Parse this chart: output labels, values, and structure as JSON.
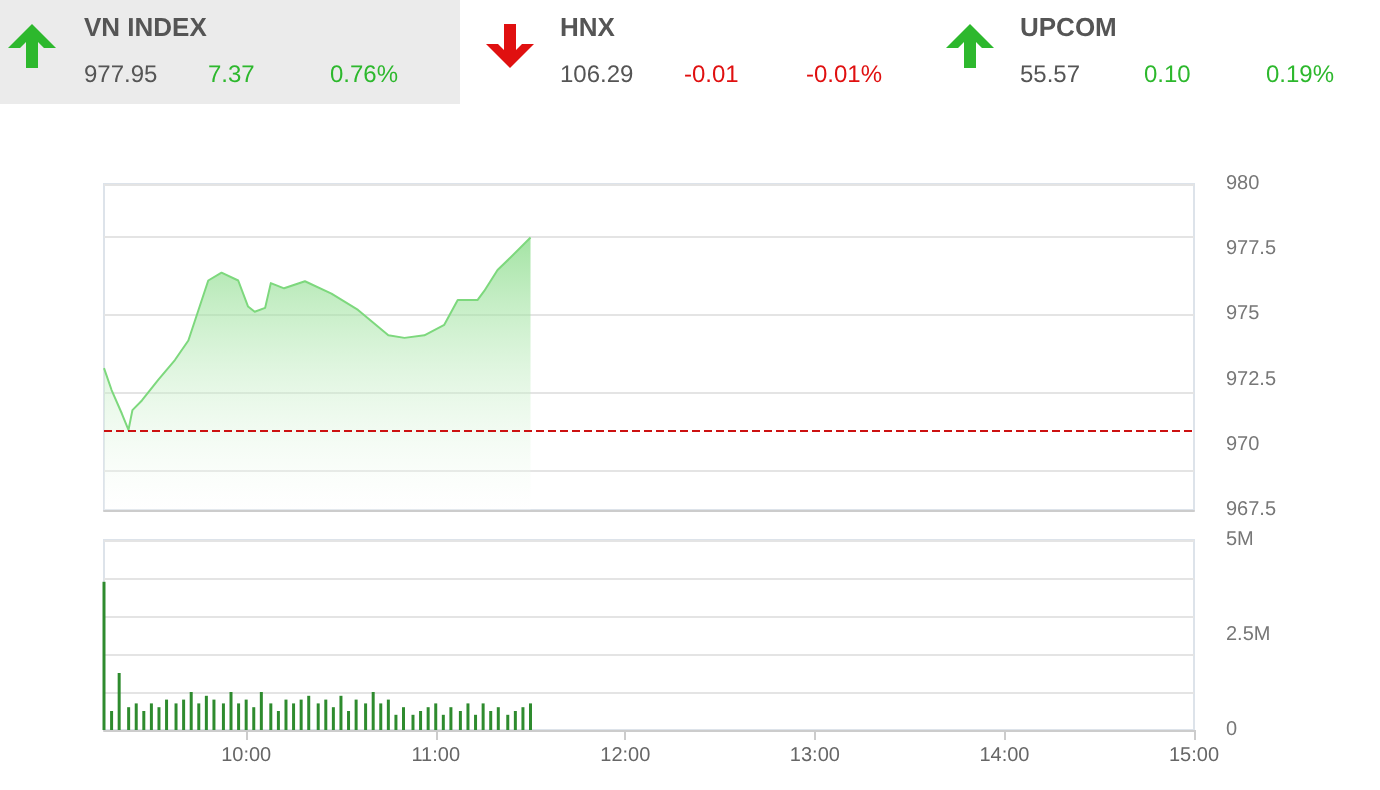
{
  "chart_data": [
    {
      "type": "other",
      "annotations": [
        "VN INDEX",
        "977.95",
        "7.37",
        "0.76%",
        "HNX",
        "106.29",
        "-0.01",
        "-0.01%",
        "UPCOM",
        "55.57",
        "0.10",
        "0.19%"
      ],
      "colors": [
        "#2db82d",
        "#e01010",
        "#2db82d"
      ]
    },
    {
      "type": "area",
      "x": [
        9.25,
        9.29,
        9.344,
        9.379,
        9.4,
        9.45,
        9.537,
        9.624,
        9.695,
        9.8,
        9.87,
        9.958,
        10.01,
        10.045,
        10.1,
        10.13,
        10.2,
        10.31,
        10.45,
        10.59,
        10.75,
        10.835,
        10.94,
        11.045,
        11.116,
        11.22,
        11.256,
        11.326,
        11.397,
        11.5
      ],
      "series": [
        {
          "color": "#7dd87d",
          "values": [
            972.94,
            972.1,
            971.2,
            970.57,
            971.33,
            971.7,
            972.5,
            973.25,
            974.0,
            976.3,
            976.6,
            976.3,
            975.3,
            975.1,
            975.25,
            976.2,
            976.0,
            976.27,
            975.8,
            975.17,
            974.2,
            974.1,
            974.2,
            974.6,
            975.55,
            975.55,
            975.9,
            976.7,
            977.2,
            977.95
          ]
        }
      ],
      "xlim": [
        9.25,
        15
      ],
      "ylim": [
        967.5,
        980
      ],
      "yticks": [
        967.5,
        970,
        972.5,
        975,
        977.5,
        980
      ],
      "grid": "y",
      "tick_labels": "y",
      "ref_lines": [
        {
          "axis": "y",
          "value": 970.58,
          "color": "#cc1111",
          "line_style": "dashed"
        }
      ]
    },
    {
      "type": "bar",
      "x": [
        9.25,
        9.29,
        9.33,
        9.38,
        9.42,
        9.46,
        9.5,
        9.54,
        9.58,
        9.63,
        9.67,
        9.71,
        9.75,
        9.79,
        9.83,
        9.88,
        9.92,
        9.96,
        10,
        10.04,
        10.08,
        10.13,
        10.17,
        10.21,
        10.25,
        10.29,
        10.33,
        10.38,
        10.42,
        10.46,
        10.5,
        10.54,
        10.58,
        10.63,
        10.67,
        10.71,
        10.75,
        10.79,
        10.83,
        10.88,
        10.92,
        10.96,
        11,
        11.04,
        11.08,
        11.13,
        11.17,
        11.21,
        11.25,
        11.29,
        11.33,
        11.38,
        11.42,
        11.46,
        11.5
      ],
      "series": [
        {
          "color": "#2e8b2e",
          "values": [
            3.9,
            0.5,
            1.5,
            0.6,
            0.7,
            0.5,
            0.7,
            0.6,
            0.8,
            0.7,
            0.8,
            1.0,
            0.7,
            0.9,
            0.8,
            0.7,
            1.0,
            0.7,
            0.8,
            0.6,
            1.0,
            0.7,
            0.5,
            0.8,
            0.7,
            0.8,
            0.9,
            0.7,
            0.8,
            0.6,
            0.9,
            0.5,
            0.8,
            0.7,
            1.0,
            0.7,
            0.8,
            0.4,
            0.6,
            0.4,
            0.5,
            0.6,
            0.7,
            0.4,
            0.6,
            0.5,
            0.7,
            0.4,
            0.7,
            0.5,
            0.6,
            0.4,
            0.5,
            0.6,
            0.7
          ]
        }
      ],
      "xlim": [
        9.25,
        15
      ],
      "xticks": [
        {
          "value": 10,
          "label": "10:00"
        },
        {
          "value": 11,
          "label": "11:00"
        },
        {
          "value": 12,
          "label": "12:00"
        },
        {
          "value": 13,
          "label": "13:00"
        },
        {
          "value": 14,
          "label": "14:00"
        },
        {
          "value": 15,
          "label": "15:00"
        }
      ],
      "ylim": [
        0,
        5
      ],
      "yticks": [
        0,
        {
          "value": 2.5,
          "label": "2.5M"
        },
        {
          "value": 5,
          "label": "5M"
        }
      ],
      "grid": "y"
    }
  ]
}
